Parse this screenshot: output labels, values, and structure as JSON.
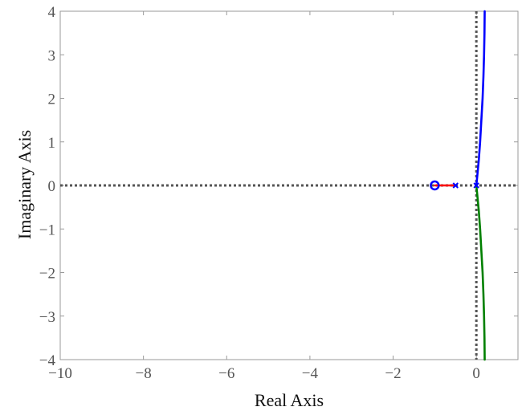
{
  "chart_data": {
    "type": "line",
    "title": "",
    "xlabel": "Real Axis",
    "ylabel": "Imaginary Axis",
    "xlim": [
      -10,
      1
    ],
    "ylim": [
      -4,
      4
    ],
    "xticks": [
      -10,
      -8,
      -6,
      -4,
      -2,
      0
    ],
    "yticks": [
      -4,
      -3,
      -2,
      -1,
      0,
      1,
      2,
      3,
      4
    ],
    "xtick_labels": [
      "−10",
      "−8",
      "−6",
      "−4",
      "−2",
      "0"
    ],
    "ytick_labels": [
      "−4",
      "−3",
      "−2",
      "−1",
      "0",
      "1",
      "2",
      "3",
      "4"
    ],
    "grid": false,
    "reference_lines": {
      "x": 0,
      "y": 0,
      "style": "dotted",
      "color": "#555555"
    },
    "series": [
      {
        "color": "#0000ff",
        "x": [
          0,
          0.03,
          0.06,
          0.09,
          0.12,
          0.15,
          0.17,
          0.185,
          0.195,
          0.2
        ],
        "y": [
          0,
          0.3,
          0.6,
          1.0,
          1.5,
          2.0,
          2.5,
          3.0,
          3.5,
          4.0
        ]
      },
      {
        "color": "#008000",
        "x": [
          0,
          0.03,
          0.06,
          0.09,
          0.12,
          0.15,
          0.17,
          0.185,
          0.195,
          0.2
        ],
        "y": [
          0,
          -0.3,
          -0.6,
          -1.0,
          -1.5,
          -2.0,
          -2.5,
          -3.0,
          -3.5,
          -4.0
        ]
      },
      {
        "color": "#ff0000",
        "x": [
          -0.5,
          -1.0
        ],
        "y": [
          0,
          0
        ]
      }
    ],
    "poles": [
      {
        "x": 0,
        "y": 0
      },
      {
        "x": -0.5,
        "y": 0
      }
    ],
    "zeros": [
      {
        "x": -1.0,
        "y": 0
      }
    ],
    "marker_color": "#0000ff"
  }
}
